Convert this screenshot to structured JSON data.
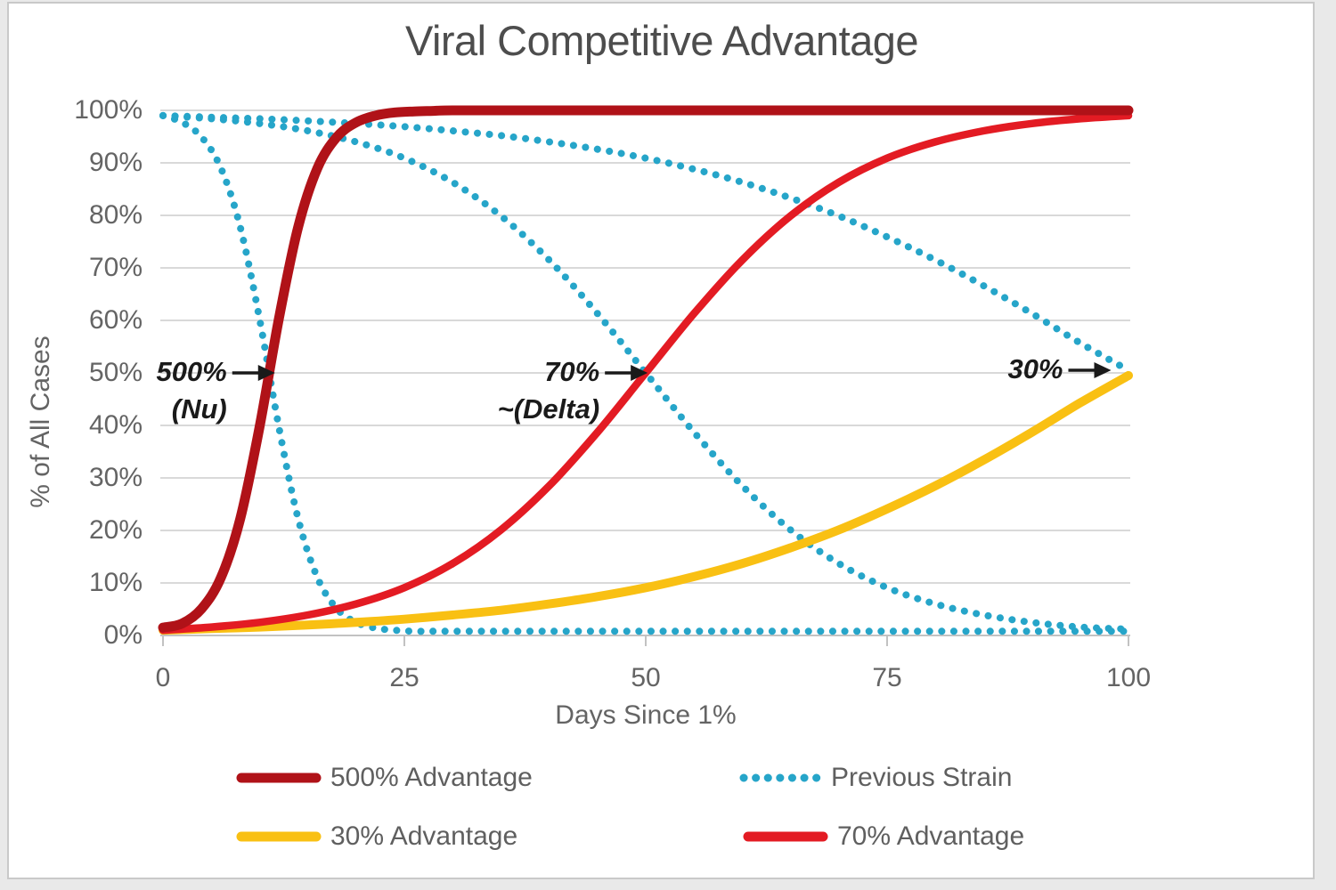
{
  "chart_data": {
    "type": "line",
    "title": "Viral Competitive Advantage",
    "xlabel": "Days Since 1%",
    "ylabel": "% of All Cases",
    "xlim": [
      0,
      100
    ],
    "ylim": [
      0,
      100
    ],
    "grid": "horizontal",
    "legend_position": "bottom",
    "x_ticks": [
      {
        "v": 0,
        "label": "0"
      },
      {
        "v": 25,
        "label": "25"
      },
      {
        "v": 50,
        "label": "50"
      },
      {
        "v": 75,
        "label": "75"
      },
      {
        "v": 100,
        "label": "100"
      }
    ],
    "y_ticks": [
      {
        "v": 0,
        "label": "0%"
      },
      {
        "v": 10,
        "label": "10%"
      },
      {
        "v": 20,
        "label": "20%"
      },
      {
        "v": 30,
        "label": "30%"
      },
      {
        "v": 40,
        "label": "40%"
      },
      {
        "v": 50,
        "label": "50%"
      },
      {
        "v": 60,
        "label": "60%"
      },
      {
        "v": 70,
        "label": "70%"
      },
      {
        "v": 80,
        "label": "80%"
      },
      {
        "v": 90,
        "label": "90%"
      },
      {
        "v": 100,
        "label": "100%"
      }
    ],
    "series": [
      {
        "name": "Previous Strain (vs 30% Advantage)",
        "color": "#26a5c9",
        "style": "dotted",
        "width": 8,
        "points": [
          [
            0,
            99
          ],
          [
            5,
            98.7
          ],
          [
            10,
            98.4
          ],
          [
            15,
            98
          ],
          [
            20,
            97.5
          ],
          [
            25,
            96.9
          ],
          [
            30,
            96.1
          ],
          [
            35,
            95.2
          ],
          [
            40,
            94
          ],
          [
            45,
            92.6
          ],
          [
            50,
            90.9
          ],
          [
            55,
            88.8
          ],
          [
            60,
            86.3
          ],
          [
            65,
            83.3
          ],
          [
            70,
            79.9
          ],
          [
            75,
            75.9
          ],
          [
            80,
            71.5
          ],
          [
            85,
            66.6
          ],
          [
            90,
            61.3
          ],
          [
            95,
            55.7
          ],
          [
            100,
            50.5
          ]
        ]
      },
      {
        "name": "Previous Strain (vs 70% Advantage)",
        "color": "#26a5c9",
        "style": "dotted",
        "width": 8,
        "points": [
          [
            0,
            99
          ],
          [
            5,
            98.4
          ],
          [
            10,
            97.5
          ],
          [
            15,
            96.1
          ],
          [
            20,
            94
          ],
          [
            25,
            90.9
          ],
          [
            30,
            86.3
          ],
          [
            35,
            79.9
          ],
          [
            40,
            71.5
          ],
          [
            45,
            61.3
          ],
          [
            50,
            50
          ],
          [
            55,
            38.7
          ],
          [
            60,
            28.5
          ],
          [
            65,
            20.1
          ],
          [
            70,
            13.7
          ],
          [
            75,
            9.1
          ],
          [
            80,
            6
          ],
          [
            85,
            3.9
          ],
          [
            90,
            2.5
          ],
          [
            95,
            1.6
          ],
          [
            100,
            1.2
          ]
        ]
      },
      {
        "name": "Previous Strain (vs 500% Advantage)",
        "color": "#26a5c9",
        "style": "dotted",
        "width": 8,
        "points": [
          [
            0,
            99
          ],
          [
            2,
            97.7
          ],
          [
            4,
            94.9
          ],
          [
            6,
            89
          ],
          [
            8,
            77.8
          ],
          [
            10,
            60.3
          ],
          [
            12,
            39.7
          ],
          [
            14,
            22.2
          ],
          [
            16,
            11
          ],
          [
            18,
            5.1
          ],
          [
            20,
            2.5
          ],
          [
            22,
            1.4
          ],
          [
            24,
            1
          ],
          [
            26,
            0.8
          ],
          [
            28,
            0.8
          ],
          [
            30,
            0.8
          ],
          [
            40,
            0.8
          ],
          [
            50,
            0.8
          ],
          [
            60,
            0.8
          ],
          [
            70,
            0.8
          ],
          [
            80,
            0.8
          ],
          [
            90,
            0.8
          ],
          [
            100,
            0.8
          ]
        ]
      },
      {
        "name": "30% Advantage",
        "color": "#f9c013",
        "style": "solid",
        "width": 10,
        "points": [
          [
            0,
            1
          ],
          [
            5,
            1.3
          ],
          [
            10,
            1.6
          ],
          [
            15,
            2
          ],
          [
            20,
            2.5
          ],
          [
            25,
            3.1
          ],
          [
            30,
            3.9
          ],
          [
            35,
            4.8
          ],
          [
            40,
            6
          ],
          [
            45,
            7.4
          ],
          [
            50,
            9.1
          ],
          [
            55,
            11.2
          ],
          [
            60,
            13.7
          ],
          [
            65,
            16.7
          ],
          [
            70,
            20.1
          ],
          [
            75,
            24.1
          ],
          [
            80,
            28.5
          ],
          [
            85,
            33.4
          ],
          [
            90,
            38.7
          ],
          [
            95,
            44.3
          ],
          [
            100,
            49.5
          ]
        ]
      },
      {
        "name": "70% Advantage",
        "color": "#e31b23",
        "style": "solid",
        "width": 8.5,
        "points": [
          [
            0,
            1
          ],
          [
            5,
            1.6
          ],
          [
            10,
            2.5
          ],
          [
            15,
            3.9
          ],
          [
            20,
            6
          ],
          [
            25,
            9.1
          ],
          [
            30,
            13.7
          ],
          [
            35,
            20.1
          ],
          [
            40,
            28.5
          ],
          [
            45,
            38.7
          ],
          [
            50,
            50
          ],
          [
            55,
            61.3
          ],
          [
            60,
            71.5
          ],
          [
            65,
            79.9
          ],
          [
            70,
            86.3
          ],
          [
            75,
            90.9
          ],
          [
            80,
            94
          ],
          [
            85,
            96.1
          ],
          [
            90,
            97.5
          ],
          [
            95,
            98.4
          ],
          [
            100,
            99
          ]
        ]
      },
      {
        "name": "500% Advantage",
        "color": "#b01218",
        "style": "solid",
        "width": 11,
        "points": [
          [
            0,
            1.5
          ],
          [
            2,
            2.3
          ],
          [
            4,
            5.1
          ],
          [
            6,
            11
          ],
          [
            8,
            22.2
          ],
          [
            10,
            39.7
          ],
          [
            12,
            60.3
          ],
          [
            14,
            77.8
          ],
          [
            16,
            89
          ],
          [
            18,
            94.9
          ],
          [
            20,
            97.7
          ],
          [
            22,
            99
          ],
          [
            24,
            99.6
          ],
          [
            26,
            99.8
          ],
          [
            28,
            99.9
          ],
          [
            30,
            100
          ],
          [
            40,
            100
          ],
          [
            50,
            100
          ],
          [
            60,
            100
          ],
          [
            70,
            100
          ],
          [
            80,
            100
          ],
          [
            90,
            100
          ],
          [
            100,
            100
          ]
        ]
      }
    ],
    "annotations": [
      {
        "lines": [
          "500%",
          "(Nu)"
        ],
        "tip_x": 11.6,
        "tip_y": 50
      },
      {
        "lines": [
          "70%",
          "~(Delta)"
        ],
        "tip_x": 50.2,
        "tip_y": 50
      },
      {
        "lines": [
          "30%"
        ],
        "tip_x": 98.2,
        "tip_y": 50.5
      }
    ],
    "legend": [
      {
        "label": "500% Advantage",
        "color": "#b01218",
        "style": "solid"
      },
      {
        "label": "Previous Strain",
        "color": "#26a5c9",
        "style": "dotted"
      },
      {
        "label": "30% Advantage",
        "color": "#f9c013",
        "style": "solid"
      },
      {
        "label": "70% Advantage",
        "color": "#e31b23",
        "style": "solid"
      }
    ]
  },
  "colors": {
    "series_500": "#b01218",
    "series_70": "#e31b23",
    "series_30": "#f9c013",
    "previous_strain": "#26a5c9",
    "grid": "#d9d9d9",
    "axis": "#c2c2c2",
    "tick_text": "#646464",
    "title_text": "#4d4d4d",
    "annotation": "#1a1a1a",
    "frame_border": "#c9c9c9",
    "background": "#ffffff"
  }
}
